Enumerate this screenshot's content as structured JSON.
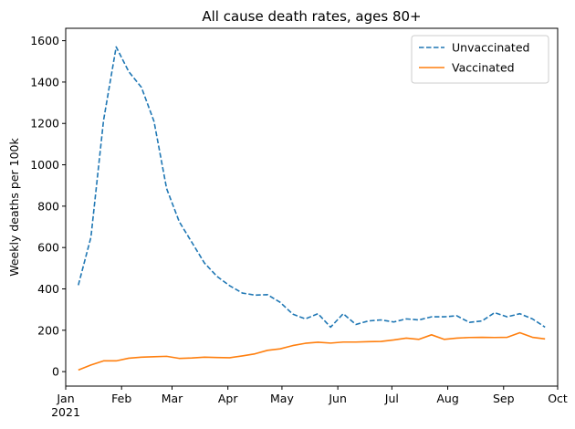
{
  "chart_data": {
    "type": "line",
    "title": "All cause death rates, ages 80+",
    "xlabel": "",
    "ylabel": "Weekly deaths per 100k",
    "x_axis": "date",
    "xlim": [
      "2021-01-01",
      "2021-10-01"
    ],
    "ylim": [
      -70,
      1660
    ],
    "yticks": [
      0,
      200,
      400,
      600,
      800,
      1000,
      1200,
      1400,
      1600
    ],
    "xticks": [
      {
        "date": "2021-01-01",
        "label": "Jan",
        "sublabel": "2021"
      },
      {
        "date": "2021-02-01",
        "label": "Feb",
        "sublabel": ""
      },
      {
        "date": "2021-03-01",
        "label": "Mar",
        "sublabel": ""
      },
      {
        "date": "2021-04-01",
        "label": "Apr",
        "sublabel": ""
      },
      {
        "date": "2021-05-01",
        "label": "May",
        "sublabel": ""
      },
      {
        "date": "2021-06-01",
        "label": "Jun",
        "sublabel": ""
      },
      {
        "date": "2021-07-01",
        "label": "Jul",
        "sublabel": ""
      },
      {
        "date": "2021-08-01",
        "label": "Aug",
        "sublabel": ""
      },
      {
        "date": "2021-09-01",
        "label": "Sep",
        "sublabel": ""
      },
      {
        "date": "2021-10-01",
        "label": "Oct",
        "sublabel": ""
      }
    ],
    "legend_position": "top-right",
    "grid": false,
    "x": [
      "2021-01-08",
      "2021-01-15",
      "2021-01-22",
      "2021-01-29",
      "2021-02-05",
      "2021-02-12",
      "2021-02-19",
      "2021-02-26",
      "2021-03-05",
      "2021-03-12",
      "2021-03-19",
      "2021-03-26",
      "2021-04-02",
      "2021-04-09",
      "2021-04-16",
      "2021-04-23",
      "2021-04-30",
      "2021-05-07",
      "2021-05-14",
      "2021-05-21",
      "2021-05-28",
      "2021-06-04",
      "2021-06-11",
      "2021-06-18",
      "2021-06-25",
      "2021-07-02",
      "2021-07-09",
      "2021-07-16",
      "2021-07-23",
      "2021-07-30",
      "2021-08-06",
      "2021-08-13",
      "2021-08-20",
      "2021-08-27",
      "2021-09-03",
      "2021-09-10",
      "2021-09-17",
      "2021-09-24"
    ],
    "series": [
      {
        "name": "Unvaccinated",
        "color": "#1f77b4",
        "dash": "dashed",
        "values": [
          418,
          650,
          1215,
          1570,
          1450,
          1375,
          1210,
          885,
          725,
          625,
          525,
          460,
          415,
          380,
          370,
          372,
          335,
          278,
          255,
          280,
          215,
          280,
          228,
          245,
          250,
          240,
          255,
          250,
          265,
          265,
          270,
          238,
          245,
          285,
          265,
          280,
          255,
          215
        ]
      },
      {
        "name": "Vaccinated",
        "color": "#ff7f0e",
        "dash": "solid",
        "values": [
          8,
          32,
          52,
          52,
          65,
          70,
          72,
          74,
          64,
          66,
          70,
          68,
          67,
          76,
          86,
          103,
          110,
          126,
          137,
          142,
          138,
          143,
          143,
          145,
          146,
          153,
          162,
          156,
          178,
          156,
          162,
          165,
          166,
          165,
          166,
          188,
          166,
          158
        ]
      }
    ]
  }
}
